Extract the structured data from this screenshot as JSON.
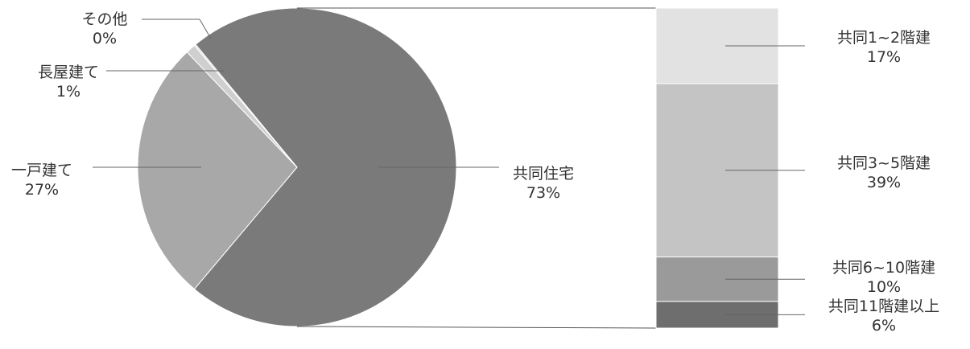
{
  "chart_data": {
    "type": "pie",
    "subtype": "bar-of-pie",
    "title": "",
    "pie": {
      "slices": [
        {
          "label": "共同住宅",
          "value_text": "73%",
          "value": 73,
          "color": "#7a7a7a"
        },
        {
          "label": "一戸建て",
          "value_text": "27%",
          "value": 27,
          "color": "#a8a8a8"
        },
        {
          "label": "長屋建て",
          "value_text": "1%",
          "value": 1,
          "color": "#cfcfcf"
        },
        {
          "label": "その他",
          "value_text": "0%",
          "value": 0,
          "color": "#e0e0e0"
        }
      ]
    },
    "bar": {
      "parent": "共同住宅",
      "segments": [
        {
          "label": "共同1~2階建",
          "value_text": "17%",
          "value": 17,
          "color": "#e2e2e2"
        },
        {
          "label": "共同3~5階建",
          "value_text": "39%",
          "value": 39,
          "color": "#c4c4c4"
        },
        {
          "label": "共同6~10階建",
          "value_text": "10%",
          "value": 10,
          "color": "#9a9a9a"
        },
        {
          "label": "共同11階建以上",
          "value_text": "6%",
          "value": 6,
          "color": "#6e6e6e"
        }
      ]
    }
  }
}
